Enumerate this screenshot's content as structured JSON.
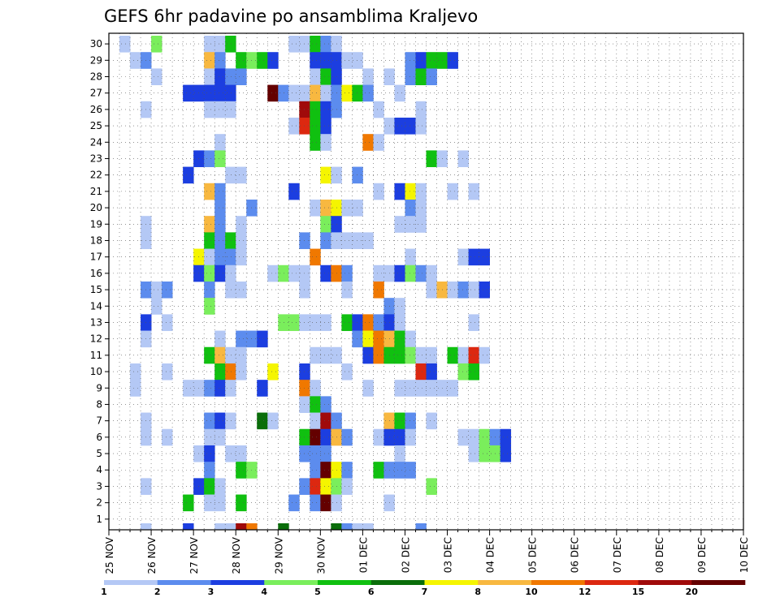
{
  "chart_data": {
    "type": "heatmap",
    "title": "GEFS 6hr padavine po ansamblima Kraljevo",
    "xlabel": "",
    "ylabel": "",
    "x_ticks": [
      "25 NOV",
      "26 NOV",
      "27 NOV",
      "28 NOV",
      "29 NOV",
      "30 NOV",
      "01 DEC",
      "02 DEC",
      "03 DEC",
      "04 DEC",
      "05 DEC",
      "06 DEC",
      "07 DEC",
      "08 DEC",
      "09 DEC",
      "10 DEC"
    ],
    "y_ticks": [
      "1",
      "2",
      "3",
      "4",
      "5",
      "6",
      "7",
      "8",
      "9",
      "10",
      "11",
      "12",
      "13",
      "14",
      "15",
      "16",
      "17",
      "18",
      "19",
      "20",
      "21",
      "22",
      "23",
      "24",
      "25",
      "26",
      "27",
      "28",
      "29",
      "30"
    ],
    "xlim": [
      0,
      60
    ],
    "ylim": [
      0,
      30
    ],
    "time_step": "6hr",
    "grid": "dotted",
    "colorbar": {
      "labels": [
        "1",
        "2",
        "3",
        "4",
        "5",
        "6",
        "7",
        "8",
        "10",
        "12",
        "15",
        "20"
      ],
      "colors": [
        "#b4c8f5",
        "#5c8cee",
        "#1c3ee0",
        "#7aee5c",
        "#10c010",
        "#0a6e0a",
        "#f5f500",
        "#f8b840",
        "#f07800",
        "#dc2810",
        "#a00a0a",
        "#640000"
      ]
    },
    "cells": [
      [
        1,
        30,
        1
      ],
      [
        4,
        30,
        4
      ],
      [
        9,
        30,
        1
      ],
      [
        10,
        30,
        1
      ],
      [
        11,
        30,
        5
      ],
      [
        17,
        30,
        1
      ],
      [
        18,
        30,
        1
      ],
      [
        19,
        30,
        5
      ],
      [
        20,
        30,
        2
      ],
      [
        21,
        30,
        1
      ],
      [
        2,
        29,
        1
      ],
      [
        3,
        29,
        2
      ],
      [
        9,
        29,
        8
      ],
      [
        10,
        29,
        2
      ],
      [
        12,
        29,
        5
      ],
      [
        13,
        29,
        4
      ],
      [
        14,
        29,
        5
      ],
      [
        15,
        29,
        3
      ],
      [
        19,
        29,
        3
      ],
      [
        20,
        29,
        3
      ],
      [
        21,
        29,
        3
      ],
      [
        22,
        29,
        1
      ],
      [
        23,
        29,
        1
      ],
      [
        28,
        29,
        2
      ],
      [
        29,
        29,
        3
      ],
      [
        30,
        29,
        5
      ],
      [
        31,
        29,
        5
      ],
      [
        32,
        29,
        3
      ],
      [
        4,
        28,
        1
      ],
      [
        9,
        28,
        1
      ],
      [
        10,
        28,
        3
      ],
      [
        11,
        28,
        2
      ],
      [
        12,
        28,
        2
      ],
      [
        19,
        28,
        1
      ],
      [
        20,
        28,
        5
      ],
      [
        21,
        28,
        3
      ],
      [
        24,
        28,
        1
      ],
      [
        26,
        28,
        1
      ],
      [
        28,
        28,
        2
      ],
      [
        29,
        28,
        5
      ],
      [
        30,
        28,
        2
      ],
      [
        7,
        27,
        3
      ],
      [
        8,
        27,
        3
      ],
      [
        9,
        27,
        3
      ],
      [
        10,
        27,
        3
      ],
      [
        11,
        27,
        3
      ],
      [
        15,
        27,
        20
      ],
      [
        16,
        27,
        2
      ],
      [
        17,
        27,
        1
      ],
      [
        18,
        27,
        1
      ],
      [
        19,
        27,
        8
      ],
      [
        20,
        27,
        1
      ],
      [
        21,
        27,
        2
      ],
      [
        22,
        27,
        7
      ],
      [
        23,
        27,
        5
      ],
      [
        24,
        27,
        2
      ],
      [
        27,
        27,
        1
      ],
      [
        3,
        26,
        1
      ],
      [
        9,
        26,
        1
      ],
      [
        10,
        26,
        1
      ],
      [
        11,
        26,
        1
      ],
      [
        18,
        26,
        15
      ],
      [
        19,
        26,
        5
      ],
      [
        20,
        26,
        3
      ],
      [
        21,
        26,
        2
      ],
      [
        25,
        26,
        1
      ],
      [
        29,
        26,
        1
      ],
      [
        17,
        25,
        1
      ],
      [
        18,
        25,
        12
      ],
      [
        19,
        25,
        5
      ],
      [
        20,
        25,
        3
      ],
      [
        26,
        25,
        1
      ],
      [
        27,
        25,
        3
      ],
      [
        28,
        25,
        3
      ],
      [
        29,
        25,
        1
      ],
      [
        10,
        24,
        1
      ],
      [
        19,
        24,
        5
      ],
      [
        20,
        24,
        1
      ],
      [
        24,
        24,
        10
      ],
      [
        25,
        24,
        1
      ],
      [
        8,
        23,
        3
      ],
      [
        9,
        23,
        2
      ],
      [
        10,
        23,
        4
      ],
      [
        30,
        23,
        5
      ],
      [
        31,
        23,
        1
      ],
      [
        33,
        23,
        1
      ],
      [
        7,
        22,
        3
      ],
      [
        11,
        22,
        1
      ],
      [
        12,
        22,
        1
      ],
      [
        20,
        22,
        7
      ],
      [
        21,
        22,
        1
      ],
      [
        23,
        22,
        2
      ],
      [
        9,
        21,
        8
      ],
      [
        10,
        21,
        2
      ],
      [
        17,
        21,
        3
      ],
      [
        25,
        21,
        1
      ],
      [
        27,
        21,
        3
      ],
      [
        28,
        21,
        7
      ],
      [
        29,
        21,
        1
      ],
      [
        32,
        21,
        1
      ],
      [
        34,
        21,
        1
      ],
      [
        10,
        20,
        2
      ],
      [
        13,
        20,
        2
      ],
      [
        19,
        20,
        1
      ],
      [
        20,
        20,
        8
      ],
      [
        21,
        20,
        7
      ],
      [
        22,
        20,
        1
      ],
      [
        23,
        20,
        1
      ],
      [
        28,
        20,
        2
      ],
      [
        29,
        20,
        1
      ],
      [
        3,
        19,
        1
      ],
      [
        9,
        19,
        8
      ],
      [
        10,
        19,
        2
      ],
      [
        12,
        19,
        1
      ],
      [
        20,
        19,
        4
      ],
      [
        21,
        19,
        3
      ],
      [
        27,
        19,
        1
      ],
      [
        28,
        19,
        1
      ],
      [
        29,
        19,
        1
      ],
      [
        3,
        18,
        1
      ],
      [
        9,
        18,
        5
      ],
      [
        10,
        18,
        2
      ],
      [
        11,
        18,
        5
      ],
      [
        12,
        18,
        1
      ],
      [
        18,
        18,
        2
      ],
      [
        20,
        18,
        2
      ],
      [
        21,
        18,
        1
      ],
      [
        22,
        18,
        1
      ],
      [
        23,
        18,
        1
      ],
      [
        24,
        18,
        1
      ],
      [
        8,
        17,
        7
      ],
      [
        9,
        17,
        1
      ],
      [
        10,
        17,
        2
      ],
      [
        11,
        17,
        2
      ],
      [
        12,
        17,
        1
      ],
      [
        19,
        17,
        10
      ],
      [
        28,
        17,
        1
      ],
      [
        33,
        17,
        1
      ],
      [
        34,
        17,
        3
      ],
      [
        35,
        17,
        3
      ],
      [
        8,
        16,
        3
      ],
      [
        9,
        16,
        4
      ],
      [
        10,
        16,
        3
      ],
      [
        11,
        16,
        1
      ],
      [
        15,
        16,
        1
      ],
      [
        16,
        16,
        4
      ],
      [
        17,
        16,
        1
      ],
      [
        18,
        16,
        1
      ],
      [
        20,
        16,
        3
      ],
      [
        21,
        16,
        10
      ],
      [
        22,
        16,
        2
      ],
      [
        25,
        16,
        1
      ],
      [
        26,
        16,
        1
      ],
      [
        27,
        16,
        3
      ],
      [
        28,
        16,
        4
      ],
      [
        29,
        16,
        2
      ],
      [
        30,
        16,
        1
      ],
      [
        3,
        15,
        2
      ],
      [
        4,
        15,
        1
      ],
      [
        5,
        15,
        2
      ],
      [
        9,
        15,
        2
      ],
      [
        11,
        15,
        1
      ],
      [
        12,
        15,
        1
      ],
      [
        18,
        15,
        1
      ],
      [
        22,
        15,
        1
      ],
      [
        25,
        15,
        10
      ],
      [
        30,
        15,
        1
      ],
      [
        31,
        15,
        8
      ],
      [
        32,
        15,
        1
      ],
      [
        33,
        15,
        2
      ],
      [
        34,
        15,
        1
      ],
      [
        35,
        15,
        3
      ],
      [
        4,
        14,
        1
      ],
      [
        9,
        14,
        4
      ],
      [
        26,
        14,
        2
      ],
      [
        27,
        14,
        1
      ],
      [
        3,
        13,
        3
      ],
      [
        5,
        13,
        1
      ],
      [
        16,
        13,
        4
      ],
      [
        17,
        13,
        4
      ],
      [
        18,
        13,
        1
      ],
      [
        19,
        13,
        1
      ],
      [
        20,
        13,
        1
      ],
      [
        22,
        13,
        5
      ],
      [
        23,
        13,
        3
      ],
      [
        24,
        13,
        10
      ],
      [
        25,
        13,
        2
      ],
      [
        26,
        13,
        3
      ],
      [
        27,
        13,
        1
      ],
      [
        34,
        13,
        1
      ],
      [
        3,
        12,
        1
      ],
      [
        10,
        12,
        1
      ],
      [
        12,
        12,
        2
      ],
      [
        13,
        12,
        2
      ],
      [
        14,
        12,
        3
      ],
      [
        23,
        12,
        2
      ],
      [
        24,
        12,
        7
      ],
      [
        25,
        12,
        10
      ],
      [
        26,
        12,
        8
      ],
      [
        27,
        12,
        5
      ],
      [
        28,
        12,
        1
      ],
      [
        9,
        11,
        5
      ],
      [
        10,
        11,
        8
      ],
      [
        11,
        11,
        1
      ],
      [
        12,
        11,
        1
      ],
      [
        19,
        11,
        1
      ],
      [
        20,
        11,
        1
      ],
      [
        21,
        11,
        1
      ],
      [
        24,
        11,
        3
      ],
      [
        25,
        11,
        10
      ],
      [
        26,
        11,
        5
      ],
      [
        27,
        11,
        5
      ],
      [
        28,
        11,
        4
      ],
      [
        29,
        11,
        1
      ],
      [
        30,
        11,
        1
      ],
      [
        32,
        11,
        5
      ],
      [
        33,
        11,
        1
      ],
      [
        34,
        11,
        12
      ],
      [
        35,
        11,
        1
      ],
      [
        2,
        10,
        1
      ],
      [
        5,
        10,
        1
      ],
      [
        10,
        10,
        5
      ],
      [
        11,
        10,
        10
      ],
      [
        12,
        10,
        1
      ],
      [
        15,
        10,
        7
      ],
      [
        18,
        10,
        3
      ],
      [
        22,
        10,
        1
      ],
      [
        29,
        10,
        12
      ],
      [
        30,
        10,
        3
      ],
      [
        33,
        10,
        4
      ],
      [
        34,
        10,
        5
      ],
      [
        2,
        9,
        1
      ],
      [
        7,
        9,
        1
      ],
      [
        8,
        9,
        1
      ],
      [
        9,
        9,
        2
      ],
      [
        10,
        9,
        3
      ],
      [
        11,
        9,
        1
      ],
      [
        14,
        9,
        3
      ],
      [
        18,
        9,
        10
      ],
      [
        19,
        9,
        1
      ],
      [
        24,
        9,
        1
      ],
      [
        27,
        9,
        1
      ],
      [
        28,
        9,
        1
      ],
      [
        29,
        9,
        1
      ],
      [
        30,
        9,
        1
      ],
      [
        31,
        9,
        1
      ],
      [
        32,
        9,
        1
      ],
      [
        18,
        8,
        1
      ],
      [
        19,
        8,
        5
      ],
      [
        20,
        8,
        2
      ],
      [
        3,
        7,
        1
      ],
      [
        9,
        7,
        2
      ],
      [
        10,
        7,
        3
      ],
      [
        11,
        7,
        1
      ],
      [
        14,
        7,
        6
      ],
      [
        15,
        7,
        1
      ],
      [
        19,
        7,
        1
      ],
      [
        20,
        7,
        15
      ],
      [
        21,
        7,
        2
      ],
      [
        26,
        7,
        8
      ],
      [
        27,
        7,
        5
      ],
      [
        28,
        7,
        2
      ],
      [
        30,
        7,
        1
      ],
      [
        3,
        6,
        1
      ],
      [
        5,
        6,
        1
      ],
      [
        9,
        6,
        1
      ],
      [
        10,
        6,
        1
      ],
      [
        18,
        6,
        5
      ],
      [
        19,
        6,
        20
      ],
      [
        20,
        6,
        3
      ],
      [
        21,
        6,
        8
      ],
      [
        22,
        6,
        2
      ],
      [
        25,
        6,
        1
      ],
      [
        26,
        6,
        3
      ],
      [
        27,
        6,
        3
      ],
      [
        28,
        6,
        1
      ],
      [
        33,
        6,
        1
      ],
      [
        34,
        6,
        1
      ],
      [
        35,
        6,
        4
      ],
      [
        36,
        6,
        2
      ],
      [
        37,
        6,
        3
      ],
      [
        8,
        5,
        1
      ],
      [
        9,
        5,
        3
      ],
      [
        11,
        5,
        1
      ],
      [
        12,
        5,
        1
      ],
      [
        18,
        5,
        2
      ],
      [
        19,
        5,
        2
      ],
      [
        20,
        5,
        2
      ],
      [
        27,
        5,
        1
      ],
      [
        34,
        5,
        1
      ],
      [
        35,
        5,
        4
      ],
      [
        36,
        5,
        4
      ],
      [
        37,
        5,
        3
      ],
      [
        9,
        4,
        2
      ],
      [
        12,
        4,
        5
      ],
      [
        13,
        4,
        4
      ],
      [
        19,
        4,
        2
      ],
      [
        20,
        4,
        20
      ],
      [
        21,
        4,
        7
      ],
      [
        22,
        4,
        2
      ],
      [
        25,
        4,
        5
      ],
      [
        26,
        4,
        2
      ],
      [
        27,
        4,
        2
      ],
      [
        28,
        4,
        2
      ],
      [
        3,
        3,
        1
      ],
      [
        8,
        3,
        3
      ],
      [
        9,
        3,
        5
      ],
      [
        10,
        3,
        1
      ],
      [
        18,
        3,
        2
      ],
      [
        19,
        3,
        12
      ],
      [
        20,
        3,
        7
      ],
      [
        21,
        3,
        4
      ],
      [
        22,
        3,
        1
      ],
      [
        30,
        3,
        4
      ],
      [
        7,
        2,
        5
      ],
      [
        9,
        2,
        1
      ],
      [
        10,
        2,
        1
      ],
      [
        12,
        2,
        5
      ],
      [
        17,
        2,
        2
      ],
      [
        19,
        2,
        2
      ],
      [
        20,
        2,
        20
      ],
      [
        21,
        2,
        1
      ],
      [
        26,
        2,
        1
      ],
      [
        3,
        0,
        1
      ],
      [
        7,
        0,
        3
      ],
      [
        10,
        0,
        1
      ],
      [
        11,
        0,
        1
      ],
      [
        12,
        0,
        15
      ],
      [
        13,
        0,
        10
      ],
      [
        16,
        0,
        6
      ],
      [
        21,
        0,
        6
      ],
      [
        22,
        0,
        2
      ],
      [
        23,
        0,
        1
      ],
      [
        24,
        0,
        1
      ],
      [
        29,
        0,
        2
      ]
    ]
  }
}
